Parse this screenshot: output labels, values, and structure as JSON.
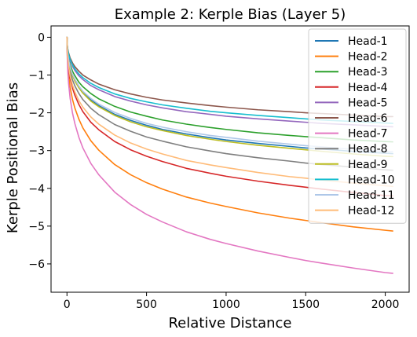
{
  "chart_data": {
    "type": "line",
    "title": "Example 2: Kerple Bias (Layer 5)",
    "xlabel": "Relative Distance",
    "ylabel": "Kerple Positional Bias",
    "xlim": [
      -100,
      2150
    ],
    "ylim": [
      -6.75,
      0.3
    ],
    "xticks": [
      0,
      500,
      1000,
      1500,
      2000
    ],
    "xtick_labels": [
      "0",
      "500",
      "1000",
      "1500",
      "2000"
    ],
    "yticks": [
      0,
      -1,
      -2,
      -3,
      -4,
      -5,
      -6
    ],
    "ytick_labels": [
      "0",
      "−1",
      "−2",
      "−3",
      "−4",
      "−5",
      "−6"
    ],
    "grid": false,
    "legend_position": "top-right",
    "x": [
      0,
      2,
      5,
      10,
      20,
      35,
      50,
      75,
      100,
      150,
      200,
      300,
      400,
      500,
      600,
      750,
      900,
      1000,
      1200,
      1400,
      1500,
      1600,
      1800,
      2000,
      2047
    ],
    "series": [
      {
        "name": "Head-1",
        "color": "#1f77b4",
        "values": [
          0,
          -0.29,
          -0.46,
          -0.61,
          -0.81,
          -1.0,
          -1.14,
          -1.32,
          -1.46,
          -1.66,
          -1.81,
          -2.04,
          -2.2,
          -2.33,
          -2.44,
          -2.56,
          -2.66,
          -2.72,
          -2.81,
          -2.89,
          -2.93,
          -2.96,
          -3.02,
          -3.07,
          -3.08
        ]
      },
      {
        "name": "Head-2",
        "color": "#ff7f0e",
        "values": [
          0,
          -0.45,
          -0.73,
          -0.99,
          -1.33,
          -1.65,
          -1.88,
          -2.17,
          -2.4,
          -2.74,
          -2.99,
          -3.37,
          -3.64,
          -3.85,
          -4.02,
          -4.23,
          -4.39,
          -4.48,
          -4.65,
          -4.79,
          -4.85,
          -4.91,
          -5.02,
          -5.11,
          -5.13
        ]
      },
      {
        "name": "Head-3",
        "color": "#2ca02c",
        "values": [
          0,
          -0.26,
          -0.41,
          -0.55,
          -0.73,
          -0.9,
          -1.02,
          -1.19,
          -1.31,
          -1.49,
          -1.63,
          -1.83,
          -1.98,
          -2.09,
          -2.19,
          -2.3,
          -2.39,
          -2.44,
          -2.53,
          -2.6,
          -2.63,
          -2.66,
          -2.72,
          -2.76,
          -2.77
        ]
      },
      {
        "name": "Head-4",
        "color": "#d62728",
        "values": [
          0,
          -0.37,
          -0.6,
          -0.81,
          -1.09,
          -1.35,
          -1.54,
          -1.78,
          -1.97,
          -2.25,
          -2.45,
          -2.76,
          -2.98,
          -3.15,
          -3.29,
          -3.47,
          -3.6,
          -3.68,
          -3.81,
          -3.92,
          -3.97,
          -4.02,
          -4.11,
          -4.19,
          -4.2
        ]
      },
      {
        "name": "Head-5",
        "color": "#9467bd",
        "values": [
          0,
          -0.22,
          -0.35,
          -0.47,
          -0.62,
          -0.77,
          -0.88,
          -1.02,
          -1.12,
          -1.28,
          -1.39,
          -1.57,
          -1.69,
          -1.79,
          -1.87,
          -1.97,
          -2.04,
          -2.09,
          -2.16,
          -2.22,
          -2.25,
          -2.28,
          -2.32,
          -2.36,
          -2.37
        ]
      },
      {
        "name": "Head-6",
        "color": "#8c564b",
        "values": [
          0,
          -0.19,
          -0.31,
          -0.41,
          -0.55,
          -0.68,
          -0.78,
          -0.9,
          -1.0,
          -1.13,
          -1.24,
          -1.39,
          -1.5,
          -1.59,
          -1.66,
          -1.74,
          -1.81,
          -1.85,
          -1.92,
          -1.97,
          -2.0,
          -2.02,
          -2.06,
          -2.1,
          -2.1
        ]
      },
      {
        "name": "Head-7",
        "color": "#e377c2",
        "values": [
          0,
          -0.55,
          -0.89,
          -1.21,
          -1.62,
          -2.01,
          -2.29,
          -2.65,
          -2.93,
          -3.34,
          -3.64,
          -4.1,
          -4.43,
          -4.69,
          -4.89,
          -5.15,
          -5.35,
          -5.46,
          -5.66,
          -5.83,
          -5.91,
          -5.98,
          -6.11,
          -6.23,
          -6.25
        ]
      },
      {
        "name": "Head-8",
        "color": "#7f7f7f",
        "values": [
          0,
          -0.31,
          -0.5,
          -0.68,
          -0.91,
          -1.13,
          -1.29,
          -1.49,
          -1.65,
          -1.88,
          -2.05,
          -2.31,
          -2.49,
          -2.64,
          -2.75,
          -2.9,
          -3.01,
          -3.08,
          -3.19,
          -3.28,
          -3.33,
          -3.37,
          -3.44,
          -3.51,
          -3.52
        ]
      },
      {
        "name": "Head-9",
        "color": "#bcbd22",
        "values": [
          0,
          -0.28,
          -0.45,
          -0.61,
          -0.82,
          -1.02,
          -1.16,
          -1.34,
          -1.48,
          -1.69,
          -1.84,
          -2.07,
          -2.24,
          -2.37,
          -2.47,
          -2.6,
          -2.7,
          -2.76,
          -2.86,
          -2.94,
          -2.98,
          -3.02,
          -3.09,
          -3.15,
          -3.16
        ]
      },
      {
        "name": "Head-10",
        "color": "#17becf",
        "values": [
          0,
          -0.2,
          -0.33,
          -0.44,
          -0.59,
          -0.73,
          -0.84,
          -0.97,
          -1.07,
          -1.22,
          -1.33,
          -1.5,
          -1.62,
          -1.71,
          -1.79,
          -1.88,
          -1.96,
          -2.0,
          -2.07,
          -2.13,
          -2.16,
          -2.19,
          -2.23,
          -2.27,
          -2.28
        ]
      },
      {
        "name": "Head-11",
        "color": "#aec7e8",
        "values": [
          0,
          -0.27,
          -0.43,
          -0.59,
          -0.79,
          -0.98,
          -1.11,
          -1.29,
          -1.43,
          -1.62,
          -1.77,
          -1.99,
          -2.15,
          -2.28,
          -2.38,
          -2.5,
          -2.6,
          -2.65,
          -2.75,
          -2.83,
          -2.87,
          -2.9,
          -2.97,
          -3.02,
          -3.03
        ]
      },
      {
        "name": "Head-12",
        "color": "#ffbb78",
        "values": [
          0,
          -0.35,
          -0.56,
          -0.76,
          -1.03,
          -1.27,
          -1.45,
          -1.68,
          -1.85,
          -2.11,
          -2.3,
          -2.59,
          -2.8,
          -2.96,
          -3.09,
          -3.26,
          -3.38,
          -3.45,
          -3.58,
          -3.69,
          -3.73,
          -3.78,
          -3.86,
          -3.93,
          -3.95
        ]
      }
    ]
  }
}
